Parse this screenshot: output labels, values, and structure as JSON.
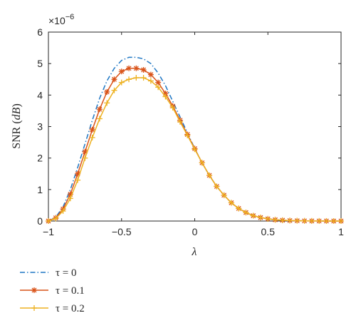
{
  "chart_data": {
    "type": "line",
    "xlabel": "λ",
    "ylabel_prefix": "SNR (",
    "ylabel_unit": "dB",
    "ylabel_suffix": ")",
    "y_multiplier_base": "×10",
    "y_multiplier_exp": "−6",
    "xlim": [
      -1,
      1
    ],
    "ylim": [
      0,
      6
    ],
    "x_ticks": [
      -1,
      -0.5,
      0,
      0.5,
      1
    ],
    "x_tick_labels": [
      "−1",
      "−0.5",
      "0",
      "0.5",
      "1"
    ],
    "y_ticks": [
      0,
      1,
      2,
      3,
      4,
      5,
      6
    ],
    "y_tick_labels": [
      "0",
      "1",
      "2",
      "3",
      "4",
      "5",
      "6"
    ],
    "grid": false,
    "legend_position": "below plot, left",
    "x": [
      -1,
      -0.95,
      -0.9,
      -0.85,
      -0.8,
      -0.75,
      -0.7,
      -0.65,
      -0.6,
      -0.55,
      -0.5,
      -0.45,
      -0.4,
      -0.35,
      -0.3,
      -0.25,
      -0.2,
      -0.15,
      -0.1,
      -0.05,
      0,
      0.05,
      0.1,
      0.15,
      0.2,
      0.25,
      0.3,
      0.35,
      0.4,
      0.45,
      0.5,
      0.55,
      0.6,
      0.65,
      0.7,
      0.75,
      0.8,
      0.85,
      0.9,
      0.95,
      1
    ],
    "series": [
      {
        "name": "τ = 0",
        "color": "#1f77c4",
        "line_style": "dash-dot",
        "marker": "none",
        "values": [
          0.0,
          0.12,
          0.45,
          1.0,
          1.7,
          2.45,
          3.2,
          3.9,
          4.45,
          4.85,
          5.1,
          5.2,
          5.2,
          5.15,
          5.0,
          4.7,
          4.3,
          3.8,
          3.3,
          2.8,
          2.3,
          1.85,
          1.45,
          1.1,
          0.82,
          0.58,
          0.4,
          0.27,
          0.17,
          0.11,
          0.07,
          0.04,
          0.025,
          0.015,
          0.01,
          0.005,
          0.003,
          0.002,
          0.001,
          0.0,
          0.0
        ]
      },
      {
        "name": "τ = 0.1",
        "color": "#d95319",
        "line_style": "solid",
        "marker": "asterisk",
        "values": [
          0.0,
          0.1,
          0.38,
          0.85,
          1.5,
          2.2,
          2.9,
          3.55,
          4.1,
          4.5,
          4.75,
          4.85,
          4.85,
          4.8,
          4.65,
          4.4,
          4.05,
          3.65,
          3.2,
          2.75,
          2.3,
          1.85,
          1.45,
          1.1,
          0.82,
          0.58,
          0.4,
          0.27,
          0.17,
          0.11,
          0.07,
          0.04,
          0.025,
          0.015,
          0.01,
          0.005,
          0.003,
          0.002,
          0.001,
          0.0,
          0.0
        ]
      },
      {
        "name": "τ = 0.2",
        "color": "#edb120",
        "line_style": "solid",
        "marker": "plus",
        "values": [
          0.0,
          0.08,
          0.32,
          0.72,
          1.3,
          2.0,
          2.65,
          3.25,
          3.75,
          4.15,
          4.4,
          4.5,
          4.55,
          4.55,
          4.45,
          4.25,
          3.95,
          3.6,
          3.15,
          2.72,
          2.28,
          1.85,
          1.45,
          1.1,
          0.82,
          0.58,
          0.4,
          0.27,
          0.17,
          0.11,
          0.07,
          0.04,
          0.025,
          0.015,
          0.01,
          0.005,
          0.003,
          0.002,
          0.001,
          0.0,
          0.0
        ]
      }
    ]
  }
}
